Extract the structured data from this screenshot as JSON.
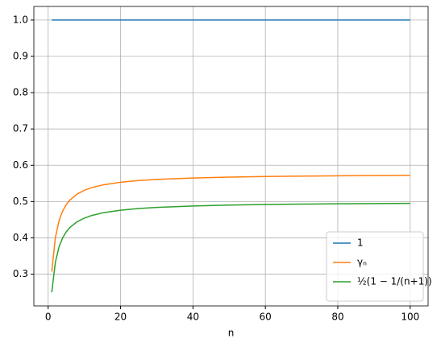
{
  "chart_data": {
    "type": "line",
    "xlabel": "n",
    "x": [
      1,
      2,
      3,
      4,
      5,
      6,
      8,
      10,
      12,
      15,
      20,
      25,
      30,
      40,
      50,
      60,
      70,
      80,
      90,
      100
    ],
    "series": [
      {
        "name": "1",
        "color": "#1f77b4",
        "values": [
          1,
          1,
          1,
          1,
          1,
          1,
          1,
          1,
          1,
          1,
          1,
          1,
          1,
          1,
          1,
          1,
          1,
          1,
          1,
          1
        ]
      },
      {
        "name": "γₙ",
        "color": "#ff7f0e",
        "values": [
          0.307,
          0.4014,
          0.447,
          0.4739,
          0.4915,
          0.5041,
          0.5207,
          0.5311,
          0.5383,
          0.5456,
          0.5532,
          0.5579,
          0.561,
          0.5649,
          0.5674,
          0.569,
          0.5701,
          0.571,
          0.5717,
          0.5723
        ]
      },
      {
        "name": "½(1 − 1/(n+1))",
        "color": "#2ca02c",
        "values": [
          0.25,
          0.3333,
          0.375,
          0.4,
          0.4167,
          0.4286,
          0.4444,
          0.4545,
          0.4615,
          0.4688,
          0.4762,
          0.4808,
          0.4839,
          0.4878,
          0.4902,
          0.4918,
          0.493,
          0.4938,
          0.4945,
          0.495
        ]
      }
    ],
    "xlim": [
      -3.95,
      104.95
    ],
    "xticks": [
      0,
      20,
      40,
      60,
      80,
      100
    ],
    "ylim": [
      0.2125,
      1.0375
    ],
    "yticks": [
      0.3,
      0.4,
      0.5,
      0.6,
      0.7,
      0.8,
      0.9,
      {
        "value": 1,
        "label": "1.0"
      }
    ],
    "grid": true,
    "legend": "lower right"
  }
}
